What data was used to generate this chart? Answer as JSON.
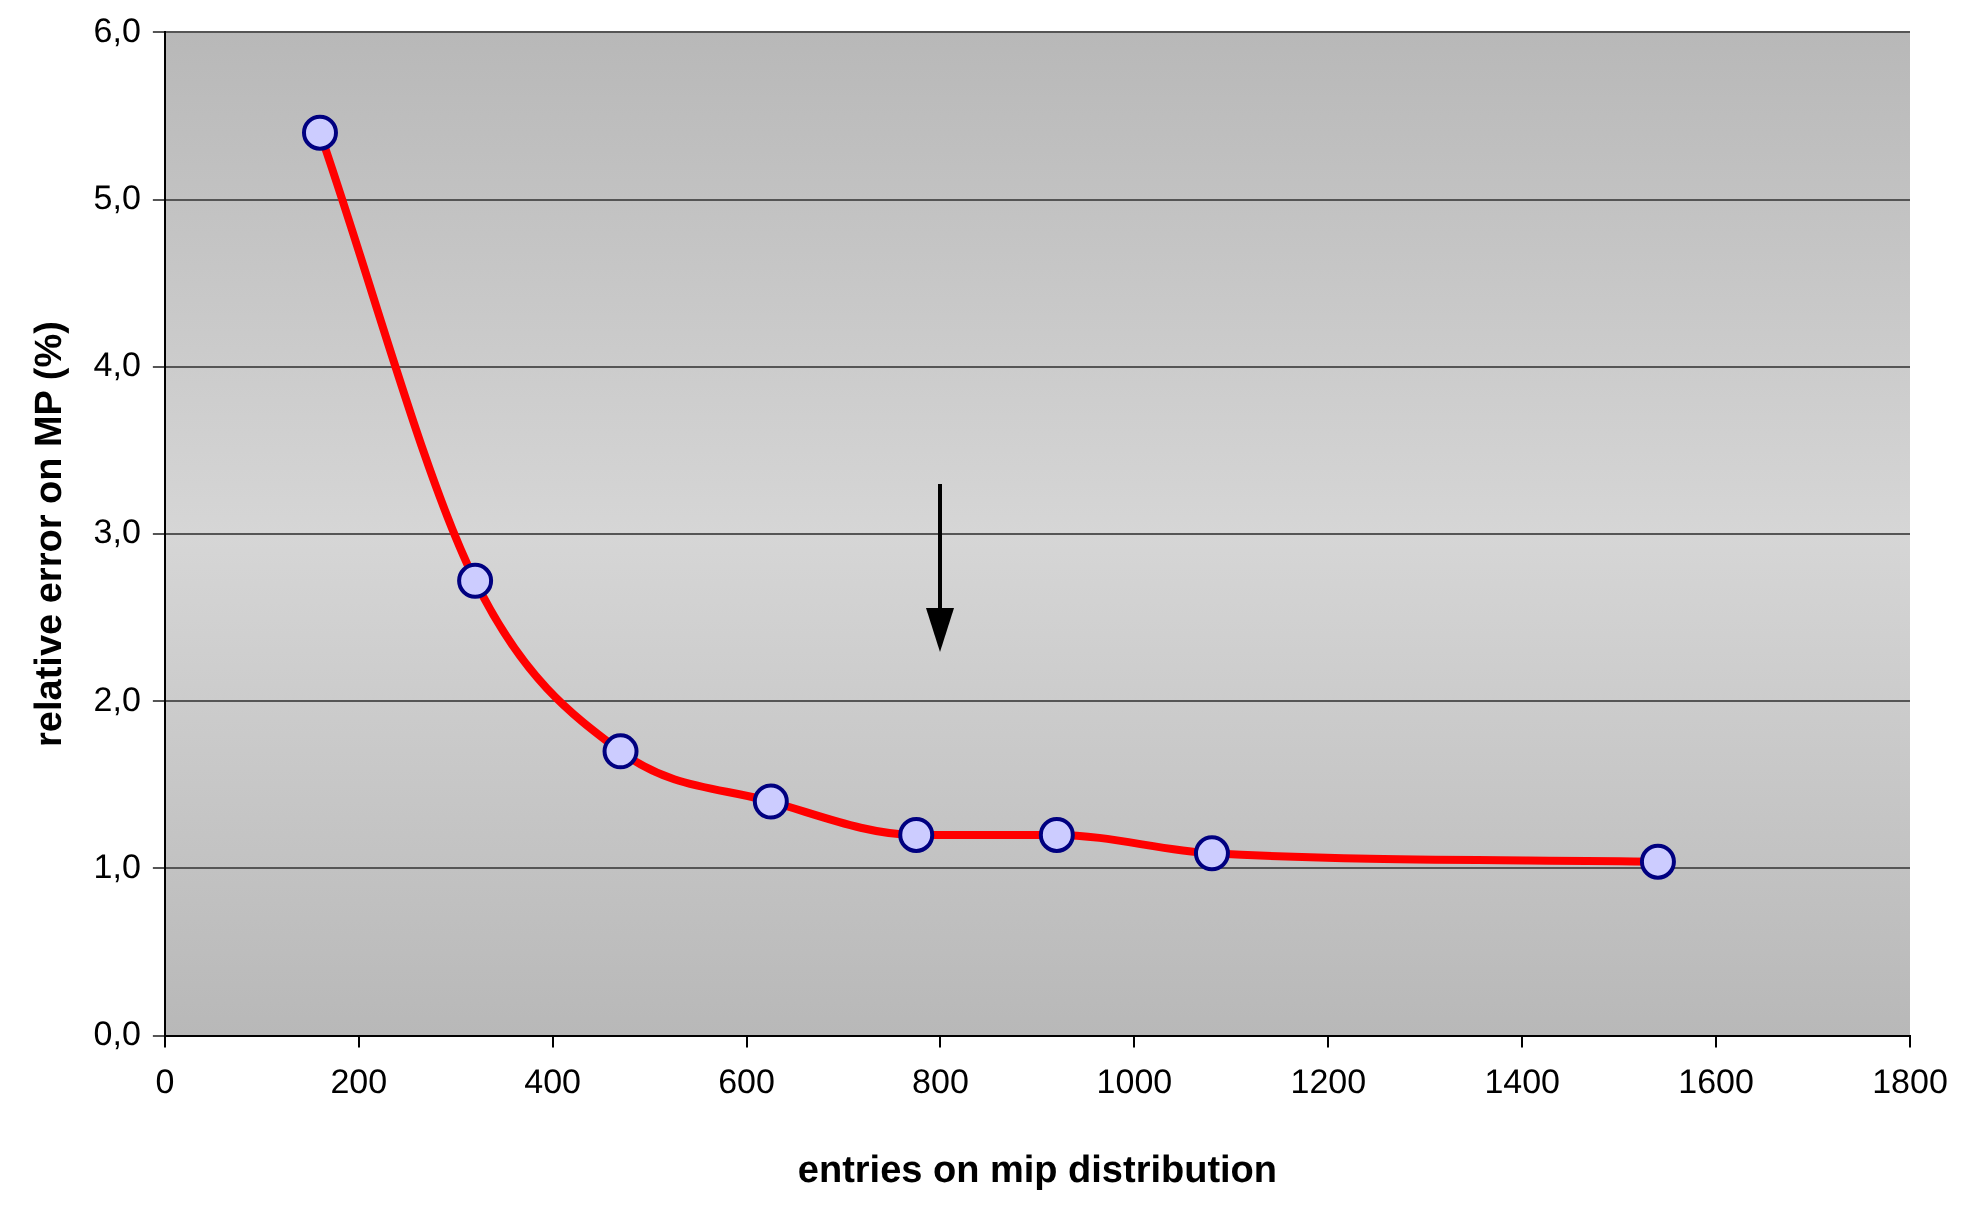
{
  "chart_data": {
    "type": "line",
    "xlabel": "entries on mip distribution",
    "ylabel": "relative error on MP (%)",
    "x": [
      160,
      320,
      470,
      625,
      775,
      920,
      1080,
      1540
    ],
    "series": [
      {
        "color": "#ff0000",
        "values": [
          5.4,
          2.72,
          1.7,
          1.4,
          1.2,
          1.2,
          1.09,
          1.04
        ]
      }
    ],
    "xlim": [
      0,
      1800
    ],
    "xticks": [
      0,
      200,
      400,
      600,
      800,
      1000,
      1200,
      1400,
      1600,
      1800
    ],
    "ylim": [
      0,
      6
    ],
    "yticks": [
      {
        "value": 0,
        "label": "0,0"
      },
      {
        "value": 1,
        "label": "1,0"
      },
      {
        "value": 2,
        "label": "2,0"
      },
      {
        "value": 3,
        "label": "3,0"
      },
      {
        "value": 4,
        "label": "4,0"
      },
      {
        "value": 5,
        "label": "5,0"
      },
      {
        "value": 6,
        "label": "6,0"
      }
    ],
    "grid": "y",
    "legend": false,
    "marker": "circle",
    "line_style": "solid"
  }
}
